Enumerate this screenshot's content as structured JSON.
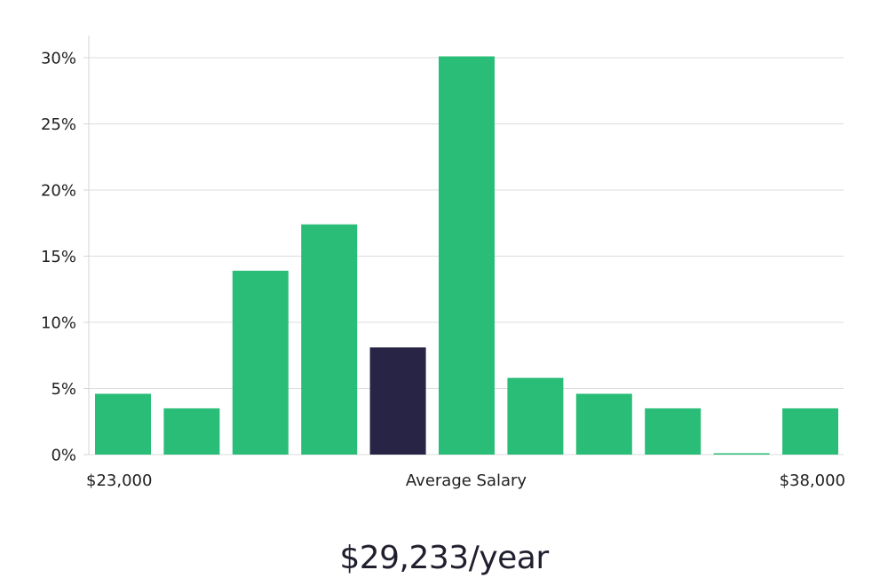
{
  "chart_data": {
    "type": "bar",
    "title": "",
    "xlabel": "Average Salary",
    "ylabel": "",
    "x_range_labels": [
      "$23,000",
      "$38,000"
    ],
    "values": [
      4.6,
      3.5,
      13.9,
      17.4,
      8.1,
      30.1,
      5.8,
      4.6,
      3.5,
      0.05,
      3.5
    ],
    "highlight_index": 4,
    "ylim": [
      0,
      30
    ],
    "yticks": [
      0,
      5,
      10,
      15,
      20,
      25,
      30
    ],
    "ytick_suffix": "%",
    "grid": true,
    "colors": {
      "bar": "#2abd77",
      "highlight": "#272445"
    }
  },
  "summary": {
    "salary": "$29,233/year"
  }
}
